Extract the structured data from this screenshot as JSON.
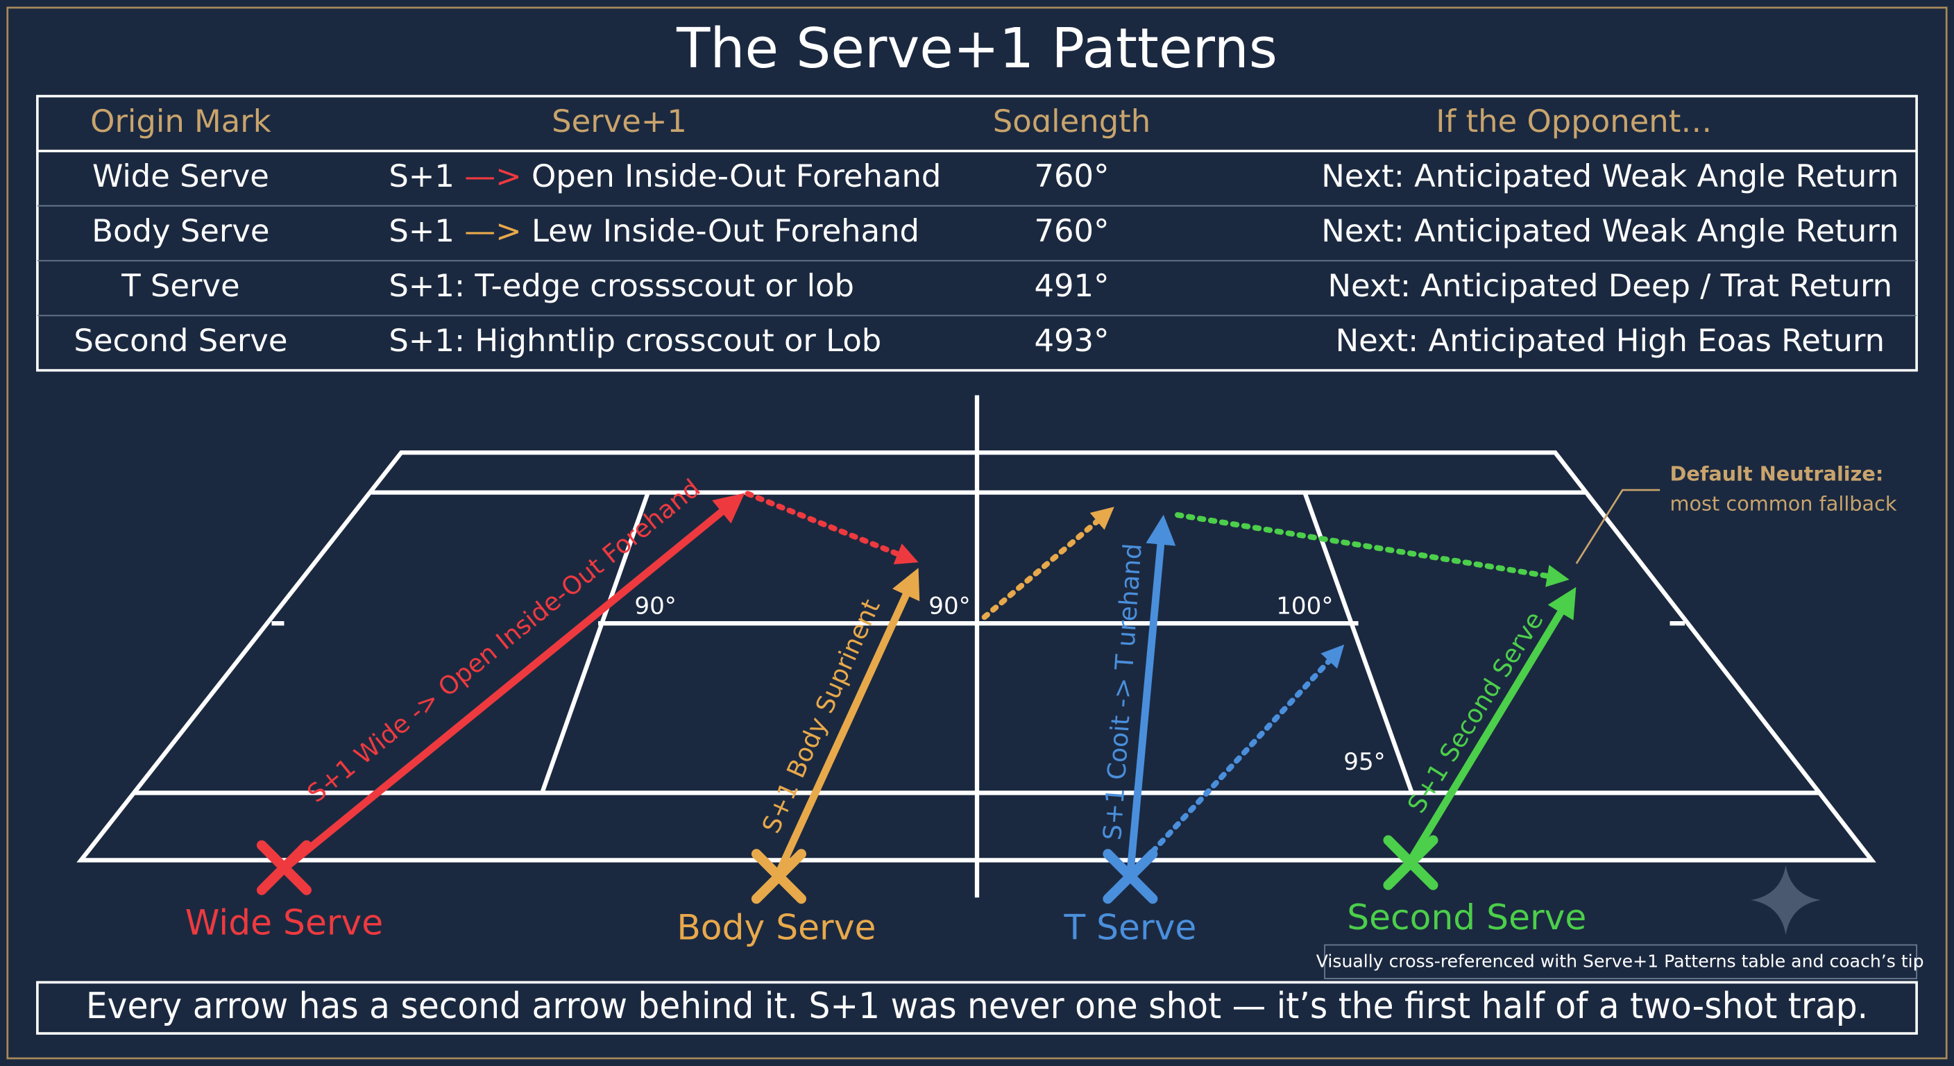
{
  "title": "The Serve+1 Patterns",
  "table": {
    "headers": [
      "Origin Mark",
      "Serve+1",
      "Soɑlength",
      "If the Opponent…"
    ],
    "rows": [
      {
        "origin": "Wide Serve",
        "shot": {
          "lead": "S+1",
          "arrow": "—>",
          "rest": "Open Inside-Out Forehand"
        },
        "length": "760°",
        "next": "Next: Anticipated Weak Angle Return"
      },
      {
        "origin": "Body Serve",
        "shot": {
          "lead": "S+1",
          "arrow": "—>",
          "rest": "Lew Inside-Out Forehand"
        },
        "length": "760°",
        "next": "Next: Anticipated Weak Angle Return"
      },
      {
        "origin": "T Serve",
        "shot": "S+1: T-edge crossscout or lob",
        "length": "491°",
        "next": "Next: Anticipated Deep / Trat Return"
      },
      {
        "origin": "Second Serve",
        "shot": "S+1: Highntlip crosscout or Lob",
        "length": "493°",
        "next": "Next: Anticipated High Eoas Return"
      }
    ]
  },
  "court": {
    "angles": [
      "90°",
      "90°",
      "100°",
      "95°"
    ],
    "arrow_labels": [
      "S+1 Wide -> Open Inside-Out Forehand",
      "S+1 Body Suprinent",
      "S+1 Cooit -> T urehand",
      "S+1 Second Serve"
    ],
    "serve_labels": [
      "Wide Serve",
      "Body Serve",
      "T Serve",
      "Second Serve"
    ],
    "callout": {
      "title": "Default Neutralize:",
      "text": "most common fallback"
    }
  },
  "note": "Visually cross-referenced with Serve+1 Patterns table and coach’s tip",
  "footer": "Every arrow has a second arrow behind it. S+1 was never one shot — it’s the first half of a two-shot trap."
}
